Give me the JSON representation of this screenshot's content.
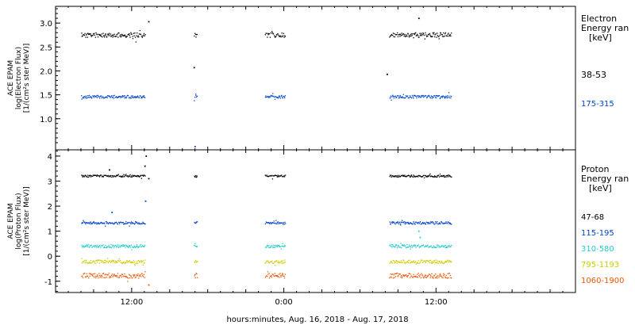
{
  "chart_data": [
    {
      "type": "scatter",
      "ylabel_lines": [
        "ACE EPAM",
        "log(Electron Flux)",
        "[1/(cm²s ster MeV)]"
      ],
      "ylim": [
        0.35,
        3.35
      ],
      "yticks": [
        1.0,
        1.5,
        2.0,
        2.5,
        3.0
      ],
      "ytick_labels": [
        "1.0",
        "1.5",
        "2.0",
        "2.5",
        "3.0"
      ],
      "legend_title_lines": [
        "Electron",
        "Energy ran",
        "[keV]"
      ],
      "series": [
        {
          "name": "38-53",
          "color": "#000000",
          "level": 2.75,
          "jitter": 0.05,
          "segments": [
            [
              -4,
              1.05
            ],
            [
              4.9,
              5.15
            ],
            [
              10.5,
              12.1
            ],
            [
              20.3,
              25.2
            ]
          ],
          "outliers": [
            [
              1.3,
              3.03
            ],
            [
              4.88,
              2.07
            ],
            [
              22.6,
              3.1
            ],
            [
              20.1,
              1.93
            ]
          ]
        },
        {
          "name": "175-315",
          "color": "#0044cc",
          "level": 1.46,
          "jitter": 0.03,
          "segments": [
            [
              -4,
              1.05
            ],
            [
              4.9,
              5.15
            ],
            [
              10.5,
              12.1
            ],
            [
              20.3,
              25.2
            ]
          ],
          "outliers": [
            [
              4.95,
              0.42
            ]
          ]
        }
      ]
    },
    {
      "type": "scatter",
      "ylabel_lines": [
        "ACE EPAM",
        "log(Proton Flux)",
        "[1/(cm²s ster MeV)]"
      ],
      "ylim": [
        -1.45,
        4.25
      ],
      "yticks": [
        -1,
        0,
        1,
        2,
        3,
        4
      ],
      "ytick_labels": [
        "-1",
        "0",
        "1",
        "2",
        "3",
        "4"
      ],
      "legend_title_lines": [
        "Proton",
        "Energy ran",
        "[keV]"
      ],
      "series": [
        {
          "name": "47-68",
          "color": "#000000",
          "level": 3.2,
          "jitter": 0.04,
          "segments": [
            [
              -4,
              1.05
            ],
            [
              4.9,
              5.15
            ],
            [
              10.5,
              12.1
            ],
            [
              20.3,
              25.2
            ]
          ],
          "outliers": [
            [
              1.1,
              4.0
            ],
            [
              1.0,
              3.6
            ],
            [
              -1.8,
              3.45
            ],
            [
              1.3,
              3.1
            ]
          ]
        },
        {
          "name": "115-195",
          "color": "#0044cc",
          "level": 1.33,
          "jitter": 0.05,
          "segments": [
            [
              -4,
              1.05
            ],
            [
              4.9,
              5.15
            ],
            [
              10.5,
              12.1
            ],
            [
              20.3,
              25.2
            ]
          ],
          "outliers": [
            [
              -1.6,
              1.75
            ],
            [
              1.05,
              2.2
            ]
          ]
        },
        {
          "name": "310-580",
          "color": "#22cccc",
          "level": 0.4,
          "jitter": 0.06,
          "segments": [
            [
              -4,
              1.05
            ],
            [
              4.9,
              5.15
            ],
            [
              10.5,
              12.1
            ],
            [
              20.3,
              25.2
            ]
          ],
          "outliers": [
            [
              22.6,
              1.0
            ],
            [
              22.7,
              0.75
            ]
          ]
        },
        {
          "name": "795-1193",
          "color": "#cccc00",
          "level": -0.22,
          "jitter": 0.07,
          "segments": [
            [
              -4,
              1.05
            ],
            [
              4.9,
              5.15
            ],
            [
              10.5,
              12.1
            ],
            [
              20.3,
              25.2
            ]
          ],
          "outliers": []
        },
        {
          "name": "1060-1900",
          "color": "#ee5500",
          "level": -0.78,
          "jitter": 0.1,
          "segments": [
            [
              -4,
              1.05
            ],
            [
              4.9,
              5.15
            ],
            [
              10.5,
              12.1
            ],
            [
              20.3,
              25.2
            ]
          ],
          "outliers": [
            [
              1.3,
              -1.15
            ]
          ]
        }
      ]
    }
  ],
  "x_axis": {
    "xlim": [
      -6,
      35
    ],
    "ticks": [
      0,
      12,
      24
    ],
    "tick_labels": [
      "12:00",
      "0:00",
      "12:00"
    ],
    "xlabel": "hours:minutes, Aug. 16, 2018 - Aug. 17, 2018"
  }
}
